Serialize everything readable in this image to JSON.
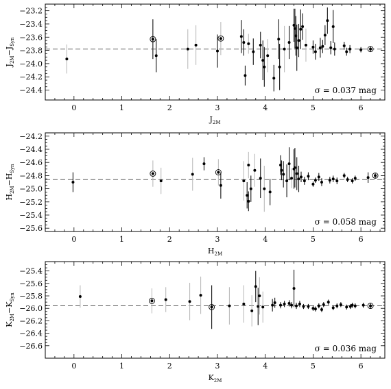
{
  "chart_data": [
    {
      "type": "scatter",
      "ylabel": "J_2M - J_Syn",
      "ylabel_main": [
        "J",
        "−J"
      ],
      "ylabel_sub": [
        "2M",
        "Syn"
      ],
      "xlabel_main": "J",
      "xlabel_sub": "2M",
      "xlim": [
        -0.6,
        6.5
      ],
      "ylim": [
        -23.1,
        -24.55
      ],
      "xticks": [
        0,
        1,
        2,
        3,
        4,
        5,
        6
      ],
      "yticks": [
        -23.2,
        -23.4,
        -23.6,
        -23.8,
        -24.0,
        -24.2,
        -24.4
      ],
      "ytick_labels": [
        "−23.2",
        "−23.4",
        "−23.6",
        "−23.8",
        "−24.0",
        "−24.2",
        "−24.4"
      ],
      "reference_line": -23.78,
      "annotation": "σ = 0.037 mag",
      "points": [
        {
          "x": -0.15,
          "y": -23.93,
          "err": 0.22,
          "dark": false
        },
        {
          "x": 1.65,
          "y": -23.63,
          "err": 0.3,
          "dark": true,
          "ring": true
        },
        {
          "x": 1.72,
          "y": -23.88,
          "err": 0.25,
          "dark": true
        },
        {
          "x": 2.38,
          "y": -23.78,
          "err": 0.3,
          "dark": false
        },
        {
          "x": 2.55,
          "y": -23.72,
          "err": 0.3,
          "dark": false
        },
        {
          "x": 3.0,
          "y": -23.81,
          "err": 0.25,
          "dark": true
        },
        {
          "x": 3.07,
          "y": -23.62,
          "err": 0.25,
          "dark": false,
          "ring": true
        },
        {
          "x": 3.5,
          "y": -23.59,
          "err": 0.25,
          "dark": true
        },
        {
          "x": 3.55,
          "y": -23.68,
          "err": 0.2,
          "dark": true
        },
        {
          "x": 3.58,
          "y": -24.18,
          "err": 0.15,
          "dark": true
        },
        {
          "x": 3.65,
          "y": -23.7,
          "err": 0.15,
          "dark": false
        },
        {
          "x": 3.75,
          "y": -23.82,
          "err": 0.2,
          "dark": true
        },
        {
          "x": 3.9,
          "y": -23.72,
          "err": 0.2,
          "dark": true
        },
        {
          "x": 3.95,
          "y": -23.95,
          "err": 0.3,
          "dark": true
        },
        {
          "x": 3.98,
          "y": -24.05,
          "err": 0.3,
          "dark": true
        },
        {
          "x": 4.05,
          "y": -23.88,
          "err": 0.25,
          "dark": false
        },
        {
          "x": 4.18,
          "y": -24.22,
          "err": 0.2,
          "dark": true
        },
        {
          "x": 4.28,
          "y": -23.63,
          "err": 0.3,
          "dark": true
        },
        {
          "x": 4.3,
          "y": -24.05,
          "err": 0.35,
          "dark": true
        },
        {
          "x": 4.4,
          "y": -23.78,
          "err": 0.35,
          "dark": false
        },
        {
          "x": 4.5,
          "y": -23.68,
          "err": 0.25,
          "dark": true
        },
        {
          "x": 4.6,
          "y": -23.42,
          "err": 0.25,
          "dark": true
        },
        {
          "x": 4.62,
          "y": -23.47,
          "err": 0.3,
          "dark": true
        },
        {
          "x": 4.64,
          "y": -23.58,
          "err": 0.3,
          "dark": true
        },
        {
          "x": 4.66,
          "y": -23.76,
          "err": 0.35,
          "dark": true
        },
        {
          "x": 4.7,
          "y": -23.65,
          "err": 0.25,
          "dark": true
        },
        {
          "x": 4.74,
          "y": -23.48,
          "err": 0.3,
          "dark": true
        },
        {
          "x": 4.78,
          "y": -23.44,
          "err": 0.2,
          "dark": true
        },
        {
          "x": 4.85,
          "y": -23.72,
          "err": 0.25,
          "dark": false
        },
        {
          "x": 5.0,
          "y": -23.75,
          "err": 0.1,
          "dark": true
        },
        {
          "x": 5.05,
          "y": -23.82,
          "err": 0.12,
          "dark": true
        },
        {
          "x": 5.15,
          "y": -23.76,
          "err": 0.15,
          "dark": true
        },
        {
          "x": 5.2,
          "y": -23.74,
          "err": 0.1,
          "dark": true
        },
        {
          "x": 5.25,
          "y": -23.57,
          "err": 0.15,
          "dark": true
        },
        {
          "x": 5.3,
          "y": -23.35,
          "err": 0.2,
          "dark": true
        },
        {
          "x": 5.37,
          "y": -23.76,
          "err": 0.1,
          "dark": true
        },
        {
          "x": 5.42,
          "y": -23.44,
          "err": 0.25,
          "dark": true
        },
        {
          "x": 5.45,
          "y": -23.78,
          "err": 0.1,
          "dark": true
        },
        {
          "x": 5.65,
          "y": -23.73,
          "err": 0.06,
          "dark": true
        },
        {
          "x": 5.7,
          "y": -23.82,
          "err": 0.06,
          "dark": true
        },
        {
          "x": 5.77,
          "y": -23.78,
          "err": 0.06,
          "dark": true
        },
        {
          "x": 6.0,
          "y": -23.79,
          "err": 0.04,
          "dark": true
        },
        {
          "x": 6.2,
          "y": -23.78,
          "err": 0.04,
          "dark": true,
          "ring": true
        }
      ]
    },
    {
      "type": "scatter",
      "ylabel": "H_2M - H_Syn",
      "ylabel_main": [
        "H",
        "−H"
      ],
      "ylabel_sub": [
        "2M",
        "Syn"
      ],
      "xlabel_main": "H",
      "xlabel_sub": "2M",
      "xlim": [
        -0.6,
        6.5
      ],
      "ylim": [
        -24.15,
        -25.65
      ],
      "xticks": [
        0,
        1,
        2,
        3,
        4,
        5,
        6
      ],
      "yticks": [
        -24.2,
        -24.4,
        -24.6,
        -24.8,
        -25.0,
        -25.2,
        -25.4,
        -25.6
      ],
      "ytick_labels": [
        "−24.2",
        "−24.4",
        "−24.6",
        "−24.8",
        "−25.0",
        "−25.2",
        "−25.4",
        "−25.6"
      ],
      "reference_line": -24.86,
      "annotation": "σ = 0.058 mag",
      "points": [
        {
          "x": -0.02,
          "y": -24.9,
          "err": 0.15,
          "dark": true
        },
        {
          "x": 1.65,
          "y": -24.77,
          "err": 0.2,
          "dark": false,
          "ring": true
        },
        {
          "x": 1.82,
          "y": -24.88,
          "err": 0.2,
          "dark": false
        },
        {
          "x": 2.48,
          "y": -24.78,
          "err": 0.25,
          "dark": false
        },
        {
          "x": 2.72,
          "y": -24.62,
          "err": 0.1,
          "dark": true
        },
        {
          "x": 3.02,
          "y": -24.75,
          "err": 0.2,
          "dark": false,
          "ring": true
        },
        {
          "x": 3.07,
          "y": -24.95,
          "err": 0.2,
          "dark": true
        },
        {
          "x": 3.55,
          "y": -24.88,
          "err": 0.3,
          "dark": false
        },
        {
          "x": 3.62,
          "y": -25.1,
          "err": 0.2,
          "dark": true
        },
        {
          "x": 3.65,
          "y": -25.19,
          "err": 0.15,
          "dark": true
        },
        {
          "x": 3.65,
          "y": -24.64,
          "err": 0.2,
          "dark": false
        },
        {
          "x": 3.7,
          "y": -25.0,
          "err": 0.2,
          "dark": true
        },
        {
          "x": 3.78,
          "y": -24.72,
          "err": 0.25,
          "dark": false
        },
        {
          "x": 3.9,
          "y": -24.84,
          "err": 0.3,
          "dark": true
        },
        {
          "x": 3.98,
          "y": -25.0,
          "err": 0.35,
          "dark": false
        },
        {
          "x": 4.1,
          "y": -25.05,
          "err": 0.2,
          "dark": true
        },
        {
          "x": 4.32,
          "y": -24.64,
          "err": 0.15,
          "dark": true
        },
        {
          "x": 4.34,
          "y": -24.72,
          "err": 0.15,
          "dark": true
        },
        {
          "x": 4.38,
          "y": -24.78,
          "err": 0.2,
          "dark": true
        },
        {
          "x": 4.45,
          "y": -24.88,
          "err": 0.25,
          "dark": true
        },
        {
          "x": 4.5,
          "y": -24.62,
          "err": 0.25,
          "dark": true
        },
        {
          "x": 4.55,
          "y": -24.84,
          "err": 0.15,
          "dark": false
        },
        {
          "x": 4.6,
          "y": -24.7,
          "err": 0.3,
          "dark": true
        },
        {
          "x": 4.62,
          "y": -24.68,
          "err": 0.3,
          "dark": true
        },
        {
          "x": 4.66,
          "y": -24.77,
          "err": 0.25,
          "dark": true
        },
        {
          "x": 4.7,
          "y": -24.85,
          "err": 0.2,
          "dark": true
        },
        {
          "x": 4.75,
          "y": -24.82,
          "err": 0.08,
          "dark": true
        },
        {
          "x": 4.82,
          "y": -24.88,
          "err": 0.06,
          "dark": true
        },
        {
          "x": 4.9,
          "y": -24.81,
          "err": 0.06,
          "dark": true
        },
        {
          "x": 5.0,
          "y": -24.93,
          "err": 0.04,
          "dark": true
        },
        {
          "x": 5.05,
          "y": -24.87,
          "err": 0.04,
          "dark": true
        },
        {
          "x": 5.12,
          "y": -24.82,
          "err": 0.06,
          "dark": true
        },
        {
          "x": 5.18,
          "y": -24.9,
          "err": 0.06,
          "dark": true
        },
        {
          "x": 5.35,
          "y": -24.87,
          "err": 0.05,
          "dark": true
        },
        {
          "x": 5.42,
          "y": -24.85,
          "err": 0.05,
          "dark": true
        },
        {
          "x": 5.5,
          "y": -24.88,
          "err": 0.05,
          "dark": true
        },
        {
          "x": 5.65,
          "y": -24.8,
          "err": 0.04,
          "dark": true
        },
        {
          "x": 5.72,
          "y": -24.86,
          "err": 0.04,
          "dark": true
        },
        {
          "x": 5.82,
          "y": -24.88,
          "err": 0.04,
          "dark": true
        },
        {
          "x": 5.88,
          "y": -24.84,
          "err": 0.04,
          "dark": true
        },
        {
          "x": 6.15,
          "y": -24.83,
          "err": 0.08,
          "dark": true
        },
        {
          "x": 6.3,
          "y": -24.8,
          "err": 0.04,
          "dark": true,
          "ring": true
        }
      ]
    },
    {
      "type": "scatter",
      "ylabel": "K_2M - K_Syn",
      "ylabel_main": [
        "K",
        "−K"
      ],
      "ylabel_sub": [
        "2M",
        "Syn"
      ],
      "xlabel_main": "K",
      "xlabel_sub": "2M",
      "xlim": [
        -0.6,
        6.5
      ],
      "ylim": [
        -25.25,
        -26.8
      ],
      "xticks": [
        0,
        1,
        2,
        3,
        4,
        5,
        6
      ],
      "yticks": [
        -25.4,
        -25.6,
        -25.8,
        -26.0,
        -26.2,
        -26.4,
        -26.6
      ],
      "ytick_labels": [
        "−25.4",
        "−25.6",
        "−25.8",
        "−26.0",
        "−26.2",
        "−26.4",
        "−26.6"
      ],
      "reference_line": -25.96,
      "annotation": "σ = 0.036 mag",
      "points": [
        {
          "x": 0.13,
          "y": -25.81,
          "err": 0.18,
          "dark": false
        },
        {
          "x": 1.63,
          "y": -25.88,
          "err": 0.2,
          "dark": false,
          "ring": true
        },
        {
          "x": 1.92,
          "y": -25.86,
          "err": 0.2,
          "dark": false
        },
        {
          "x": 2.42,
          "y": -25.89,
          "err": 0.3,
          "dark": false
        },
        {
          "x": 2.65,
          "y": -25.79,
          "err": 0.3,
          "dark": false
        },
        {
          "x": 2.88,
          "y": -25.98,
          "err": 0.35,
          "dark": true,
          "ring": true
        },
        {
          "x": 3.25,
          "y": -25.96,
          "err": 0.3,
          "dark": false
        },
        {
          "x": 3.55,
          "y": -25.93,
          "err": 0.3,
          "dark": false
        },
        {
          "x": 3.72,
          "y": -26.04,
          "err": 0.25,
          "dark": false
        },
        {
          "x": 3.8,
          "y": -25.65,
          "err": 0.25,
          "dark": true
        },
        {
          "x": 3.85,
          "y": -25.97,
          "err": 0.3,
          "dark": true
        },
        {
          "x": 3.88,
          "y": -25.8,
          "err": 0.3,
          "dark": false
        },
        {
          "x": 3.95,
          "y": -25.98,
          "err": 0.25,
          "dark": false
        },
        {
          "x": 4.15,
          "y": -25.95,
          "err": 0.1,
          "dark": true
        },
        {
          "x": 4.2,
          "y": -25.91,
          "err": 0.08,
          "dark": true
        },
        {
          "x": 4.32,
          "y": -25.95,
          "err": 0.05,
          "dark": true
        },
        {
          "x": 4.4,
          "y": -25.93,
          "err": 0.05,
          "dark": true
        },
        {
          "x": 4.5,
          "y": -25.92,
          "err": 0.05,
          "dark": true
        },
        {
          "x": 4.55,
          "y": -25.95,
          "err": 0.05,
          "dark": true
        },
        {
          "x": 4.6,
          "y": -25.68,
          "err": 0.3,
          "dark": true
        },
        {
          "x": 4.65,
          "y": -25.96,
          "err": 0.05,
          "dark": true
        },
        {
          "x": 4.72,
          "y": -25.93,
          "err": 0.05,
          "dark": true
        },
        {
          "x": 4.8,
          "y": -25.97,
          "err": 0.04,
          "dark": true
        },
        {
          "x": 4.9,
          "y": -25.97,
          "err": 0.04,
          "dark": true
        },
        {
          "x": 5.0,
          "y": -26.0,
          "err": 0.04,
          "dark": true
        },
        {
          "x": 5.05,
          "y": -26.01,
          "err": 0.04,
          "dark": true
        },
        {
          "x": 5.12,
          "y": -25.96,
          "err": 0.04,
          "dark": true
        },
        {
          "x": 5.18,
          "y": -26.02,
          "err": 0.04,
          "dark": true
        },
        {
          "x": 5.22,
          "y": -25.94,
          "err": 0.04,
          "dark": true
        },
        {
          "x": 5.32,
          "y": -25.9,
          "err": 0.04,
          "dark": true
        },
        {
          "x": 5.42,
          "y": -25.99,
          "err": 0.04,
          "dark": true
        },
        {
          "x": 5.5,
          "y": -25.96,
          "err": 0.04,
          "dark": true
        },
        {
          "x": 5.58,
          "y": -25.94,
          "err": 0.04,
          "dark": true
        },
        {
          "x": 5.7,
          "y": -25.98,
          "err": 0.04,
          "dark": true
        },
        {
          "x": 5.78,
          "y": -25.97,
          "err": 0.04,
          "dark": true
        },
        {
          "x": 5.82,
          "y": -25.95,
          "err": 0.04,
          "dark": true
        },
        {
          "x": 5.88,
          "y": -25.96,
          "err": 0.04,
          "dark": true
        },
        {
          "x": 6.05,
          "y": -25.95,
          "err": 0.04,
          "dark": true
        },
        {
          "x": 6.2,
          "y": -25.96,
          "err": 0.04,
          "dark": true,
          "ring": true
        }
      ]
    }
  ],
  "colors": {
    "points": "#000000",
    "faint_errorbars": "#bbbbbb",
    "reference_line": "#444444"
  }
}
